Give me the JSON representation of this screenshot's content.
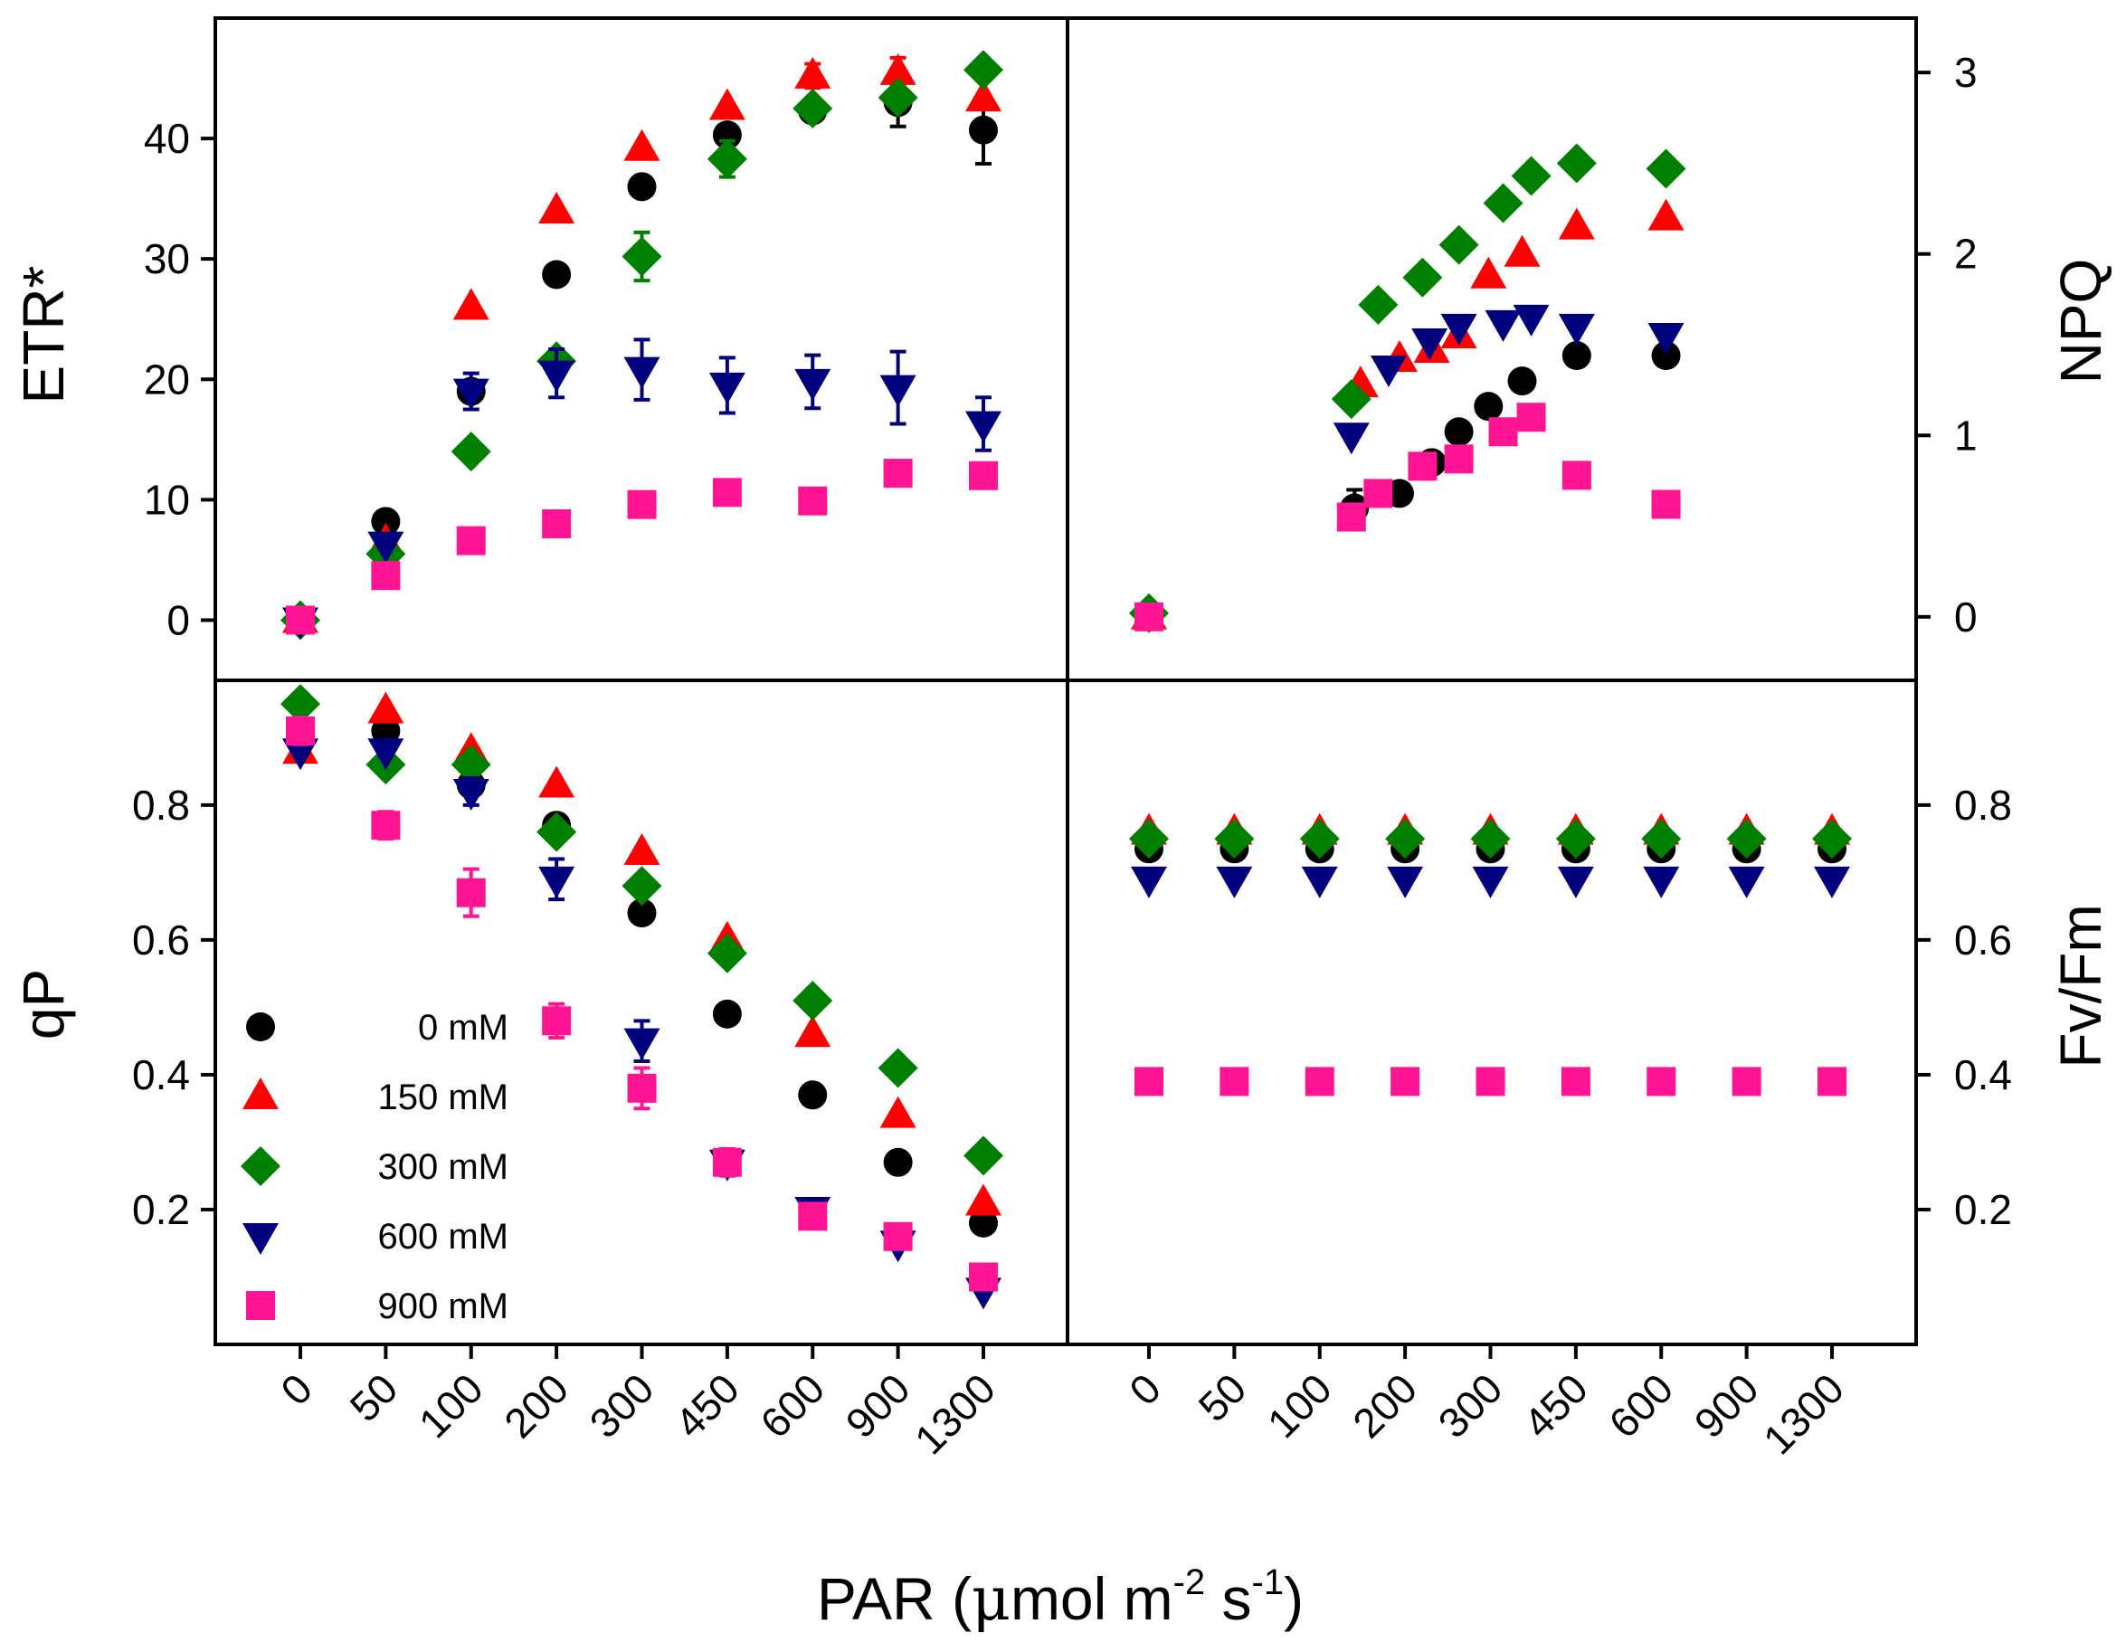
{
  "colors": {
    "s0": "#000000",
    "s150": "#ff0000",
    "s300": "#008000",
    "s600": "#00007f",
    "s900": "#ff1493"
  },
  "x_tick_labels": [
    "0",
    "50",
    "100",
    "200",
    "300",
    "450",
    "600",
    "900",
    "1300"
  ],
  "x_title": {
    "main": "PAR (",
    "mu": "μ",
    "mol": "mol m",
    "exp1": "-2",
    "s": " s",
    "exp2": "-1",
    "close": ")"
  },
  "legend": [
    "0 mM",
    "150 mM",
    "300 mM",
    "600 mM",
    "900 mM"
  ],
  "chart_data": [
    {
      "id": "etr",
      "type": "scatter",
      "panel": "top-left",
      "ylabel": "ETR*",
      "ylim": [
        -5,
        50
      ],
      "yticks": [
        0,
        10,
        20,
        30,
        40
      ],
      "categories": [
        "0",
        "50",
        "100",
        "200",
        "300",
        "450",
        "600",
        "900",
        "1300"
      ],
      "series": [
        {
          "name": "0 mM",
          "color": "s0",
          "marker": "circle",
          "values": [
            0,
            8.2,
            19,
            28.7,
            36,
            40.3,
            42.3,
            43,
            40.7
          ],
          "errors": [
            0,
            0,
            0,
            0,
            0,
            0,
            0,
            2,
            2.8
          ]
        },
        {
          "name": "150 mM",
          "color": "s150",
          "marker": "triangle-up",
          "values": [
            0,
            6.5,
            26,
            34,
            39.2,
            42.6,
            45.2,
            45.5,
            43.3
          ],
          "errors": [
            0,
            0,
            0,
            0,
            0,
            0,
            1,
            1.2,
            0
          ]
        },
        {
          "name": "300 mM",
          "color": "s300",
          "marker": "diamond",
          "values": [
            0,
            5.5,
            14,
            21.5,
            30.2,
            38.3,
            42.5,
            43.4,
            45.7
          ],
          "errors": [
            0,
            0,
            0,
            0.8,
            2,
            1.5,
            0,
            0,
            0
          ]
        },
        {
          "name": "600 mM",
          "color": "s600",
          "marker": "triangle-down",
          "values": [
            0,
            6.3,
            19,
            20.5,
            20.8,
            19.5,
            19.8,
            19.3,
            16.3
          ],
          "errors": [
            0,
            0,
            1.5,
            2,
            2.5,
            2.3,
            2.2,
            3,
            2.2
          ]
        },
        {
          "name": "900 mM",
          "color": "s900",
          "marker": "square",
          "values": [
            0,
            3.7,
            6.6,
            8,
            9.6,
            10.6,
            9.9,
            12.2,
            12
          ]
        },
        {
          "name": "_",
          "hidden": true
        }
      ]
    },
    {
      "id": "npq",
      "type": "scatter",
      "panel": "top-right",
      "ylabel": "NPQ",
      "ylim": [
        -0.35,
        3.3
      ],
      "yticks": [
        0,
        1,
        2,
        3
      ],
      "categories": [
        "0",
        "50",
        "100",
        "200",
        "300",
        "450",
        "600",
        "900",
        "1300"
      ],
      "series": [
        {
          "name": "0 mM",
          "color": "s0",
          "marker": "circle",
          "points": [
            [
              1.5,
              0
            ],
            [
              24,
              0.6
            ],
            [
              44,
              0.68
            ],
            [
              68,
              0.85
            ],
            [
              98,
              1.02
            ],
            [
              146,
              1.16
            ],
            [
              230,
              1.3
            ],
            [
              480,
              1.44
            ],
            [
              1600,
              1.44
            ]
          ],
          "errors": [
            0,
            0.1,
            0,
            0,
            0,
            0,
            0,
            0,
            0
          ]
        },
        {
          "name": "150 mM",
          "color": "s150",
          "marker": "triangle-up",
          "points": [
            [
              1.5,
              0
            ],
            [
              26,
              1.28
            ],
            [
              44,
              1.42
            ],
            [
              68,
              1.47
            ],
            [
              98,
              1.55
            ],
            [
              146,
              1.88
            ],
            [
              230,
              2.0
            ],
            [
              480,
              2.15
            ],
            [
              1600,
              2.2
            ]
          ]
        },
        {
          "name": "300 mM",
          "color": "s300",
          "marker": "diamond",
          "points": [
            [
              1.5,
              0.02
            ],
            [
              23,
              1.2
            ],
            [
              33,
              1.72
            ],
            [
              60,
              1.87
            ],
            [
              98,
              2.05
            ],
            [
              178,
              2.28
            ],
            [
              260,
              2.43
            ],
            [
              480,
              2.5
            ],
            [
              1600,
              2.47
            ]
          ]
        },
        {
          "name": "600 mM",
          "color": "s600",
          "marker": "triangle-down",
          "points": [
            [
              23,
              1.0
            ],
            [
              38,
              1.37
            ],
            [
              66,
              1.52
            ],
            [
              98,
              1.6
            ],
            [
              178,
              1.62
            ],
            [
              260,
              1.65
            ],
            [
              480,
              1.6
            ],
            [
              1600,
              1.55
            ]
          ]
        },
        {
          "name": "900 mM",
          "color": "s900",
          "marker": "square",
          "points": [
            [
              1.5,
              0
            ],
            [
              23,
              0.55
            ],
            [
              33,
              0.68
            ],
            [
              60,
              0.83
            ],
            [
              98,
              0.87
            ],
            [
              178,
              1.02
            ],
            [
              260,
              1.1
            ],
            [
              480,
              0.78
            ],
            [
              1600,
              0.62
            ]
          ]
        }
      ]
    },
    {
      "id": "qp",
      "type": "scatter",
      "panel": "bottom-left",
      "ylabel": "qP",
      "ylim": [
        0.0,
        0.985
      ],
      "yticks": [
        0.2,
        0.4,
        0.6,
        0.8
      ],
      "yticklabels": [
        "0.2",
        "0.4",
        "0.6",
        "0.8"
      ],
      "categories": [
        "0",
        "50",
        "100",
        "200",
        "300",
        "450",
        "600",
        "900",
        "1300"
      ],
      "series": [
        {
          "name": "0 mM",
          "color": "s0",
          "marker": "circle",
          "values": [
            0.9,
            0.91,
            0.83,
            0.77,
            0.64,
            0.49,
            0.37,
            0.27,
            0.18
          ]
        },
        {
          "name": "150 mM",
          "color": "s150",
          "marker": "triangle-up",
          "values": [
            0.88,
            0.94,
            0.88,
            0.83,
            0.73,
            0.6,
            0.46,
            0.34,
            0.21
          ]
        },
        {
          "name": "300 mM",
          "color": "s300",
          "marker": "diamond",
          "values": [
            0.95,
            0.86,
            0.86,
            0.76,
            0.68,
            0.58,
            0.51,
            0.41,
            0.28
          ]
        },
        {
          "name": "600 mM",
          "color": "s600",
          "marker": "triangle-down",
          "values": [
            0.88,
            0.88,
            0.82,
            0.69,
            0.45,
            0.27,
            0.2,
            0.15,
            0.08
          ],
          "errors": [
            0,
            0,
            0.02,
            0.03,
            0.03,
            0,
            0,
            0,
            0
          ]
        },
        {
          "name": "900 mM",
          "color": "s900",
          "marker": "square",
          "values": [
            0.91,
            0.77,
            0.67,
            0.48,
            0.38,
            0.27,
            0.19,
            0.16,
            0.1
          ],
          "errors": [
            0.02,
            0.02,
            0.035,
            0.025,
            0.03,
            0.02,
            0,
            0,
            0
          ]
        }
      ]
    },
    {
      "id": "fvfm",
      "type": "scatter",
      "panel": "bottom-right",
      "ylabel": "Fv/Fm",
      "ylim": [
        0.0,
        0.985
      ],
      "yticks": [
        0.2,
        0.4,
        0.6,
        0.8
      ],
      "yticklabels": [
        "0.2",
        "0.4",
        "0.6",
        "0.8"
      ],
      "categories": [
        "0",
        "50",
        "100",
        "200",
        "300",
        "450",
        "600",
        "900",
        "1300"
      ],
      "series": [
        {
          "name": "0 mM",
          "color": "s0",
          "marker": "circle",
          "values": [
            0.735,
            0.735,
            0.735,
            0.735,
            0.735,
            0.735,
            0.735,
            0.735,
            0.735
          ]
        },
        {
          "name": "150 mM",
          "color": "s150",
          "marker": "triangle-up",
          "values": [
            0.76,
            0.76,
            0.76,
            0.76,
            0.76,
            0.76,
            0.76,
            0.76,
            0.76
          ]
        },
        {
          "name": "300 mM",
          "color": "s300",
          "marker": "diamond",
          "values": [
            0.75,
            0.75,
            0.75,
            0.75,
            0.75,
            0.75,
            0.75,
            0.75,
            0.75
          ]
        },
        {
          "name": "600 mM",
          "color": "s600",
          "marker": "triangle-down",
          "values": [
            0.69,
            0.69,
            0.69,
            0.69,
            0.69,
            0.69,
            0.69,
            0.69,
            0.69
          ]
        },
        {
          "name": "900 mM",
          "color": "s900",
          "marker": "square",
          "values": [
            0.39,
            0.39,
            0.39,
            0.39,
            0.39,
            0.39,
            0.39,
            0.39,
            0.39
          ],
          "errors": [
            0.018,
            0.018,
            0.018,
            0.018,
            0.018,
            0.018,
            0.018,
            0.018,
            0.018
          ]
        }
      ]
    }
  ]
}
